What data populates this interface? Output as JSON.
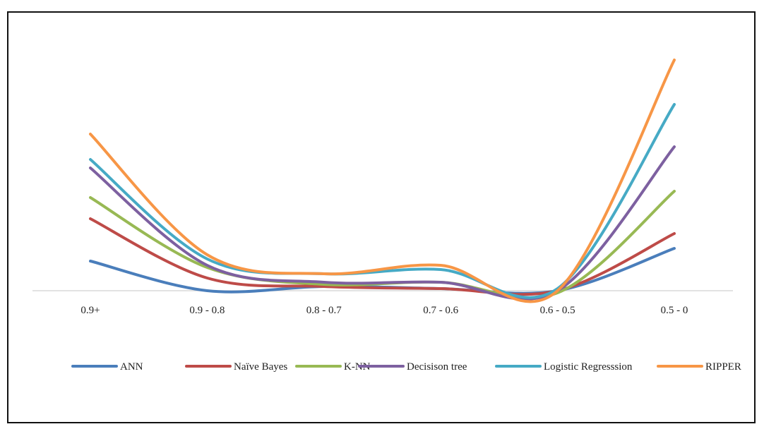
{
  "chart_data": {
    "type": "line",
    "smooth": true,
    "categories": [
      "0.9+",
      "0.9 - 0.8",
      "0.8 - 0.7",
      "0.7 - 0.6",
      "0.6 - 0.5",
      "0.5 - 0"
    ],
    "ylim": [
      -5,
      100
    ],
    "grid": false,
    "legend": "bottom",
    "series": [
      {
        "name": "ANN",
        "color": "#4a7ebb",
        "values": [
          14,
          0,
          2,
          1,
          0,
          20
        ]
      },
      {
        "name": "Naïve Bayes",
        "color": "#be4b48",
        "values": [
          34,
          6,
          2,
          1,
          0,
          27
        ]
      },
      {
        "name": "K-NN",
        "color": "#98b954",
        "values": [
          44,
          11,
          3,
          4,
          -1,
          47
        ]
      },
      {
        "name": "Decisison tree",
        "color": "#7d60a0",
        "values": [
          58,
          12,
          4,
          4,
          0,
          68
        ]
      },
      {
        "name": "Logistic Regresssion",
        "color": "#46aac5",
        "values": [
          62,
          15,
          8,
          10,
          1,
          88
        ]
      },
      {
        "name": "RIPPER",
        "color": "#f79646",
        "values": [
          74,
          17,
          8,
          12,
          0,
          109
        ]
      }
    ]
  }
}
